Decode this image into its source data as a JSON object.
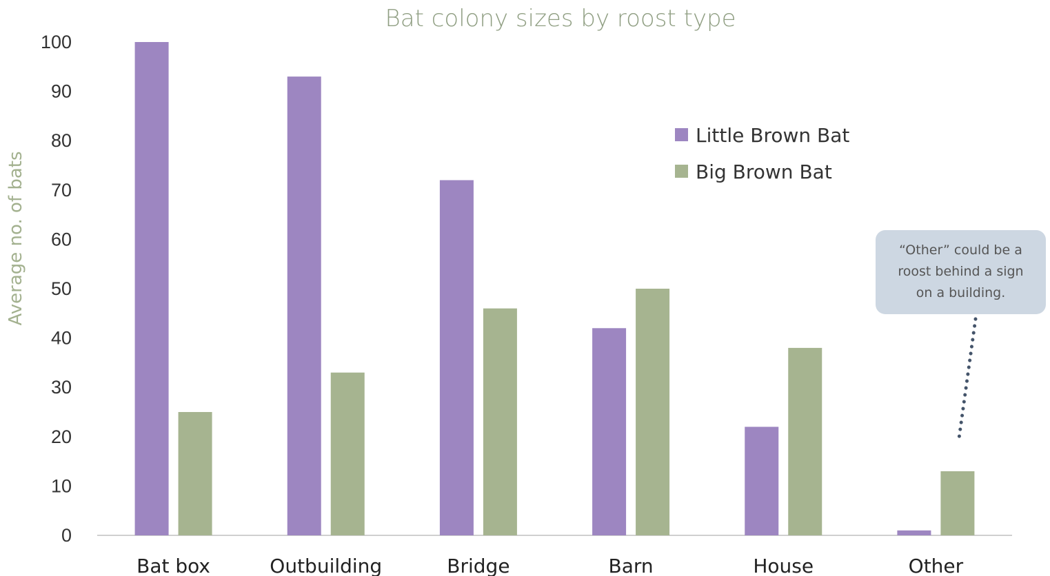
{
  "chart_data": {
    "type": "bar",
    "title": "Bat colony sizes by roost type",
    "xlabel": "",
    "ylabel": "Average no. of bats",
    "ylim": [
      0,
      100
    ],
    "yticks": [
      0,
      10,
      20,
      30,
      40,
      50,
      60,
      70,
      80,
      90,
      100
    ],
    "categories": [
      "Bat box",
      "Outbuilding",
      "Bridge",
      "Barn",
      "House",
      "Other"
    ],
    "series": [
      {
        "name": "Little Brown Bat",
        "color": "#9d86c1",
        "values": [
          100,
          93,
          72,
          42,
          22,
          1
        ]
      },
      {
        "name": "Big Brown Bat",
        "color": "#a6b490",
        "values": [
          25,
          33,
          46,
          50,
          38,
          13
        ]
      }
    ],
    "grid": false,
    "legend": "top-right",
    "annotation": {
      "lines": [
        "“Other” could be a",
        "roost behind a sign",
        "on a building."
      ],
      "target_category": "Other"
    }
  }
}
